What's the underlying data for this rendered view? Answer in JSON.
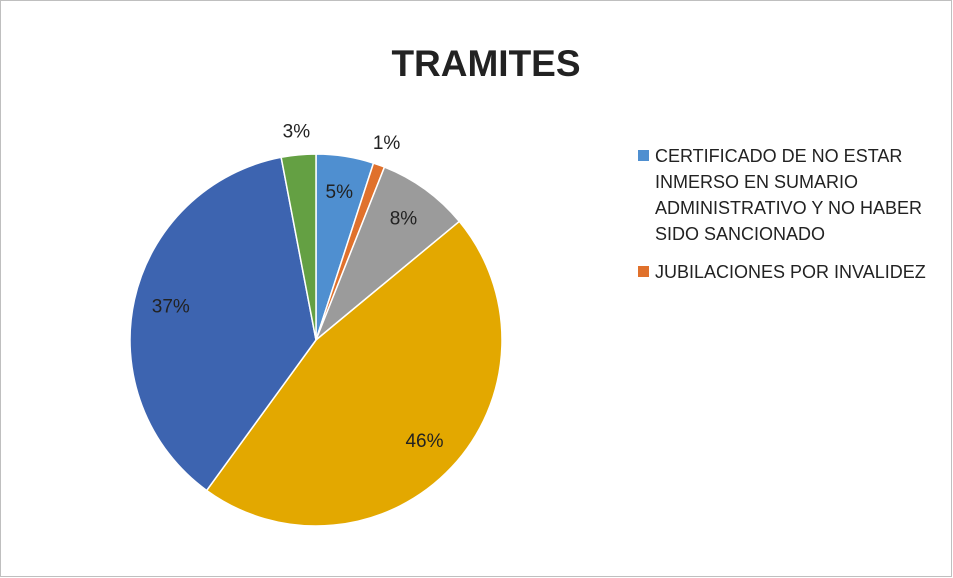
{
  "chart_data": {
    "type": "pie",
    "title": "TRAMITES",
    "categories": [
      "CERTIFICADO DE NO ESTAR INMERSO EN SUMARIO ADMINISTRATIVO Y NO HABER SIDO SANCIONADO",
      "JUBILACIONES POR INVALIDEZ",
      null,
      null,
      null,
      null
    ],
    "values": [
      5,
      1,
      8,
      46,
      37,
      3
    ],
    "colors": [
      "#4f8fd0",
      "#e0712c",
      "#9b9b9b",
      "#e3a800",
      "#3d64b0",
      "#64a043"
    ]
  }
}
